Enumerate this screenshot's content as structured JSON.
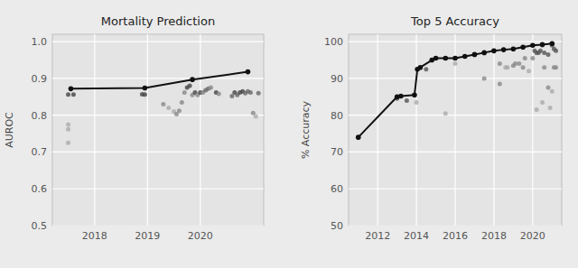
{
  "chart_data": [
    {
      "type": "scatter",
      "title": "Mortality Prediction",
      "ylabel": "AUROC",
      "xlim": [
        2017.2,
        2021.2
      ],
      "ylim": [
        0.5,
        1.02
      ],
      "xticks": [
        2018,
        2019,
        2020
      ],
      "yticks": [
        0.5,
        0.6,
        0.7,
        0.8,
        0.9,
        {
          "value": 1.0,
          "label": "1.0"
        }
      ],
      "grid": true,
      "series": [
        {
          "type": "scatter",
          "x": [
            2017.5,
            2017.5,
            2017.5,
            2017.5,
            2017.6,
            2018.9,
            2018.95,
            2019.3,
            2019.4,
            2019.5,
            2019.55,
            2019.6,
            2019.65,
            2019.7,
            2019.75,
            2019.8,
            2019.85,
            2019.9,
            2019.95,
            2020.0,
            2020.05,
            2020.1,
            2020.15,
            2020.2,
            2020.3,
            2020.35,
            2020.6,
            2020.65,
            2020.7,
            2020.75,
            2020.8,
            2020.85,
            2020.9,
            2020.95,
            2021.0,
            2021.05,
            2021.1
          ],
          "values": [
            0.856,
            0.775,
            0.762,
            0.725,
            0.856,
            0.857,
            0.856,
            0.83,
            0.82,
            0.81,
            0.803,
            0.812,
            0.835,
            0.862,
            0.875,
            0.88,
            0.855,
            0.862,
            0.855,
            0.862,
            0.862,
            0.868,
            0.872,
            0.875,
            0.862,
            0.858,
            0.852,
            0.862,
            0.855,
            0.862,
            0.865,
            0.86,
            0.865,
            0.862,
            0.806,
            0.797,
            0.86
          ],
          "colors": [
            "#444444",
            "#aaaaaa",
            "#aaaaaa",
            "#aaaaaa",
            "#444444",
            "#444444",
            "#444444",
            "#888888",
            "#aaaaaa",
            "#aaaaaa",
            "#888888",
            "#888888",
            "#888888",
            "#888888",
            "#444444",
            "#444444",
            "#888888",
            "#444444",
            "#888888",
            "#444444",
            "#888888",
            "#666666",
            "#666666",
            "#888888",
            "#444444",
            "#888888",
            "#666666",
            "#444444",
            "#666666",
            "#444444",
            "#444444",
            "#666666",
            "#666666",
            "#666666",
            "#888888",
            "#aaaaaa",
            "#666666"
          ]
        },
        {
          "type": "line",
          "marker": "circle",
          "color": "#111111",
          "x": [
            2017.55,
            2018.95,
            2019.85,
            2020.9
          ],
          "values": [
            0.872,
            0.874,
            0.897,
            0.918
          ]
        }
      ]
    },
    {
      "type": "scatter",
      "title": "Top 5 Accuracy",
      "ylabel": "% Accuracy",
      "xlim": [
        2010.5,
        2021.5
      ],
      "ylim": [
        50,
        102
      ],
      "xticks": [
        2012,
        2014,
        2016,
        2018,
        2020
      ],
      "yticks": [
        50,
        60,
        70,
        80,
        90,
        100
      ],
      "grid": true,
      "series": [
        {
          "type": "scatter",
          "x": [
            2013.0,
            2013.5,
            2014.0,
            2014.5,
            2015.0,
            2015.5,
            2016.0,
            2016.5,
            2017.0,
            2017.5,
            2018.0,
            2018.3,
            2018.6,
            2019.0,
            2019.3,
            2019.6,
            2020.0,
            2020.2,
            2020.4,
            2020.6,
            2020.8,
            2021.0,
            2021.1,
            2021.2,
            2015.5,
            2016.0,
            2018.3,
            2018.7,
            2019.1,
            2019.5,
            2019.8,
            2020.1,
            2020.3,
            2020.6,
            2020.9,
            2021.0,
            2021.2,
            2020.2,
            2020.5,
            2020.8,
            2021.1
          ],
          "values": [
            84.5,
            84.0,
            83.5,
            92.5,
            95.5,
            95.5,
            95.5,
            96.0,
            96.5,
            90.0,
            97.5,
            94.0,
            93.0,
            93.5,
            94.0,
            95.5,
            95.5,
            97.0,
            97.5,
            97.0,
            96.5,
            99.0,
            98.0,
            97.5,
            80.5,
            94.0,
            88.5,
            93.0,
            94.0,
            93.0,
            92.0,
            97.5,
            97.0,
            93.0,
            82.0,
            86.5,
            93.0,
            81.5,
            83.5,
            87.5,
            93.0
          ],
          "colors": [
            "#555555",
            "#555555",
            "#aaaaaa",
            "#555555",
            "#555555",
            "#555555",
            "#555555",
            "#555555",
            "#333333",
            "#888888",
            "#333333",
            "#888888",
            "#aaaaaa",
            "#888888",
            "#888888",
            "#888888",
            "#888888",
            "#555555",
            "#555555",
            "#555555",
            "#555555",
            "#555555",
            "#555555",
            "#555555",
            "#aaaaaa",
            "#aaaaaa",
            "#888888",
            "#aaaaaa",
            "#888888",
            "#888888",
            "#aaaaaa",
            "#555555",
            "#555555",
            "#888888",
            "#aaaaaa",
            "#aaaaaa",
            "#888888",
            "#aaaaaa",
            "#aaaaaa",
            "#888888",
            "#888888"
          ]
        },
        {
          "type": "line",
          "marker": "circle",
          "color": "#111111",
          "x": [
            2011.0,
            2013.0,
            2013.2,
            2013.9,
            2014.05,
            2014.2,
            2014.8,
            2015.0,
            2015.5,
            2016.0,
            2016.5,
            2017.0,
            2017.5,
            2018.0,
            2018.5,
            2019.0,
            2019.5,
            2020.0,
            2020.5,
            2021.0
          ],
          "values": [
            74.0,
            85.0,
            85.2,
            85.5,
            92.5,
            93.0,
            95.0,
            95.5,
            95.5,
            95.5,
            96.0,
            96.5,
            97.0,
            97.5,
            97.8,
            98.0,
            98.5,
            99.0,
            99.2,
            99.5
          ]
        }
      ]
    }
  ]
}
